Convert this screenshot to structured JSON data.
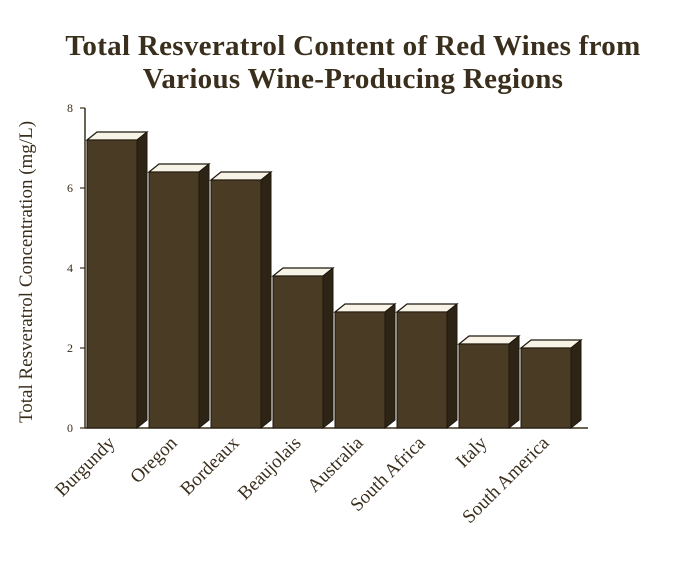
{
  "chart_data": {
    "type": "bar3d",
    "title": "Total Resveratrol Content of Red Wines from Various Wine-Producing Regions",
    "y_label": "Total Resveratrol Concentration (mg/L)",
    "categories": [
      "Burgundy",
      "Oregon",
      "Bordeaux",
      "Beaujolais",
      "Australia",
      "South Africa",
      "Italy",
      "South America"
    ],
    "values": [
      7.2,
      6.4,
      6.2,
      3.8,
      2.9,
      2.9,
      2.1,
      2.0
    ],
    "color": "#4a3b24",
    "ylim": [
      0,
      8
    ],
    "yticks": [
      0,
      2,
      4,
      6,
      8
    ]
  }
}
